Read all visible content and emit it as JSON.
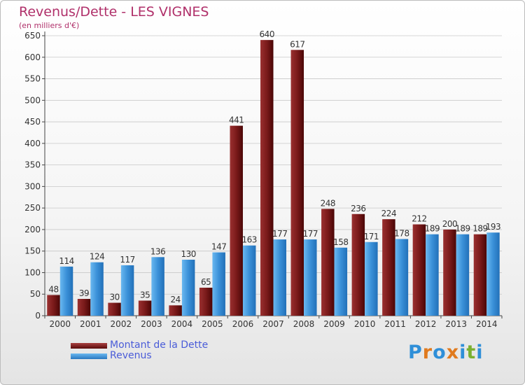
{
  "header": {
    "title": "Revenus/Dette - LES VIGNES",
    "subtitle": "(en milliers d'€)"
  },
  "legend": {
    "items": [
      {
        "label": "Montant de la Dette",
        "color": "#7a1a1a"
      },
      {
        "label": "Revenus",
        "color": "#3a90d8"
      }
    ]
  },
  "logo": {
    "letters": [
      "P",
      "r",
      "o",
      "x",
      "i",
      "t",
      "i"
    ],
    "colors": [
      "#2f8fd8",
      "#e07a1e",
      "#2f8fd8",
      "#e07a1e",
      "#2f8fd8",
      "#7ab030",
      "#2f8fd8"
    ]
  },
  "chart_data": {
    "type": "bar",
    "title": "Revenus/Dette - LES VIGNES",
    "subtitle": "(en milliers d'€)",
    "categories": [
      "2000",
      "2001",
      "2002",
      "2003",
      "2004",
      "2005",
      "2006",
      "2007",
      "2008",
      "2009",
      "2010",
      "2011",
      "2012",
      "2013",
      "2014"
    ],
    "series": [
      {
        "name": "Montant de la Dette",
        "color": "#7a1a1a",
        "values": [
          48,
          39,
          30,
          35,
          24,
          65,
          441,
          640,
          617,
          248,
          236,
          224,
          212,
          200,
          189
        ]
      },
      {
        "name": "Revenus",
        "color": "#3a90d8",
        "values": [
          114,
          124,
          117,
          136,
          130,
          147,
          163,
          177,
          177,
          158,
          171,
          178,
          189,
          189,
          193
        ]
      }
    ],
    "ylim": [
      0,
      650
    ],
    "yticks": [
      0,
      50,
      100,
      150,
      200,
      250,
      300,
      350,
      400,
      450,
      500,
      550,
      600,
      650
    ],
    "grid": true,
    "legend": "bottom-left"
  }
}
